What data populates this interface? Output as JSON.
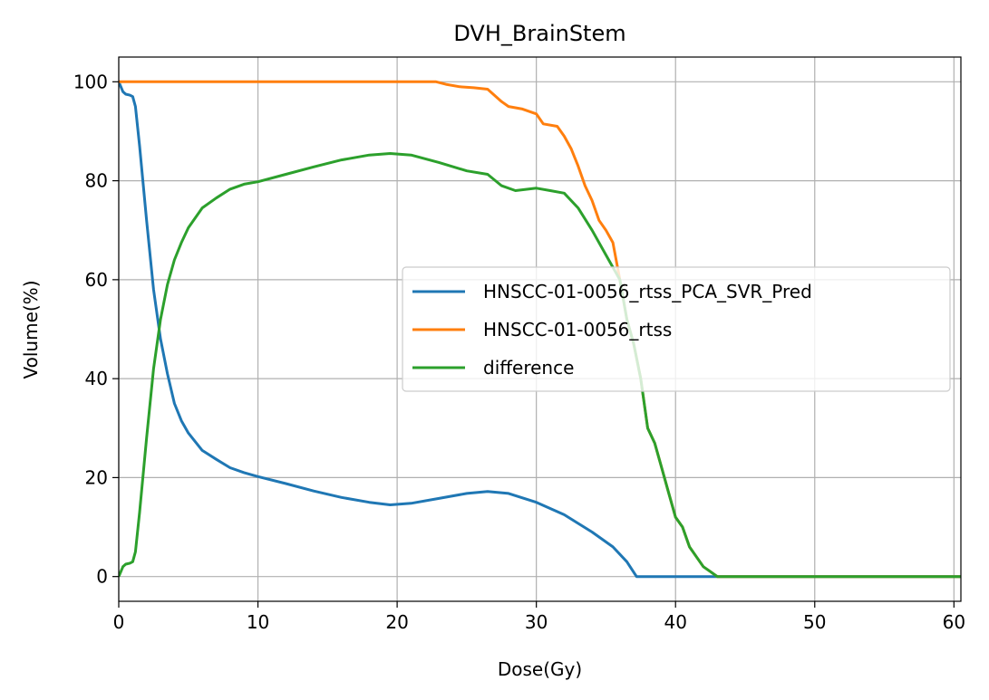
{
  "chart_data": {
    "type": "line",
    "title": "DVH_BrainStem",
    "xlabel": "Dose(Gy)",
    "ylabel": "Volume(%)",
    "xlim": [
      0,
      60.5
    ],
    "ylim": [
      -5,
      105
    ],
    "xticks": [
      0,
      10,
      20,
      30,
      40,
      50,
      60
    ],
    "yticks": [
      0,
      20,
      40,
      60,
      80,
      100
    ],
    "grid": true,
    "legend_position": "center-right",
    "series": [
      {
        "name": "HNSCC-01-0056_rtss_PCA_SVR_Pred",
        "color": "#1f77b4",
        "x": [
          0,
          0.3,
          0.5,
          0.8,
          1.0,
          1.2,
          1.5,
          2.0,
          2.5,
          3.0,
          3.5,
          4.0,
          4.5,
          5.0,
          6.0,
          7.0,
          8.0,
          9.0,
          10.0,
          12.0,
          14.0,
          16.0,
          18.0,
          19.5,
          21.0,
          23.0,
          25.0,
          26.5,
          28.0,
          30.0,
          32.0,
          34.0,
          35.5,
          36.5,
          37.2,
          40.0,
          45.0,
          50.0,
          55.0,
          60.5
        ],
        "y": [
          100,
          98,
          97.5,
          97.3,
          97,
          95,
          87,
          72,
          58,
          48,
          41,
          35,
          31.5,
          29,
          25.5,
          23.7,
          22,
          21,
          20.2,
          18.8,
          17.3,
          16,
          15,
          14.5,
          14.8,
          15.8,
          16.8,
          17.2,
          16.8,
          15,
          12.5,
          9,
          6,
          3,
          0,
          0,
          0,
          0,
          0,
          0
        ]
      },
      {
        "name": "HNSCC-01-0056_rtss",
        "color": "#ff7f0e",
        "x": [
          0,
          5,
          10,
          15,
          20,
          22.8,
          23.5,
          24.5,
          25.5,
          26.5,
          27.5,
          28.0,
          29.0,
          30.0,
          30.5,
          31.5,
          32.0,
          32.5,
          33.0,
          33.5,
          34.0,
          34.5,
          35.0,
          35.5,
          36.0,
          36.5,
          37.0,
          37.5,
          38.0,
          38.5,
          39.0,
          39.5,
          40.0,
          40.5,
          41.0,
          41.5,
          42.0,
          42.5,
          43.0,
          45.0,
          50.0,
          55.0,
          60.5
        ],
        "y": [
          100,
          100,
          100,
          100,
          100,
          100,
          99.5,
          99,
          98.8,
          98.5,
          96,
          95,
          94.5,
          93.5,
          91.5,
          91,
          89,
          86.5,
          83,
          79,
          76,
          72,
          70,
          67.5,
          60,
          52,
          47,
          40,
          30,
          27,
          22,
          17,
          12,
          10,
          6,
          4,
          2,
          1,
          0,
          0,
          0,
          0,
          0
        ]
      },
      {
        "name": "difference",
        "color": "#2ca02c",
        "x": [
          0,
          0.3,
          0.5,
          0.8,
          1.0,
          1.2,
          1.5,
          2.0,
          2.5,
          3.0,
          3.5,
          4.0,
          4.5,
          5.0,
          6.0,
          7.0,
          8.0,
          9.0,
          10.0,
          12.0,
          14.0,
          16.0,
          18.0,
          19.5,
          21.0,
          23.0,
          25.0,
          26.5,
          27.5,
          28.5,
          30.0,
          31.0,
          32.0,
          33.0,
          34.0,
          35.0,
          36.0,
          36.5,
          37.0,
          37.5,
          38.0,
          38.5,
          39.0,
          39.5,
          40.0,
          40.5,
          41.0,
          41.5,
          42.0,
          42.5,
          43.0,
          45.0,
          50.0,
          55.0,
          60.5
        ],
        "y": [
          0,
          2,
          2.5,
          2.7,
          3,
          5,
          13,
          28,
          42,
          52,
          59,
          64,
          67.5,
          70.5,
          74.5,
          76.5,
          78.3,
          79.3,
          79.8,
          81.3,
          82.8,
          84.2,
          85.2,
          85.5,
          85.2,
          83.7,
          82,
          81.3,
          79,
          78,
          78.5,
          78,
          77.5,
          74.5,
          70,
          65,
          60,
          52,
          47,
          40,
          30,
          27,
          22,
          17,
          12,
          10,
          6,
          4,
          2,
          1,
          0,
          0,
          0,
          0,
          0
        ]
      }
    ]
  }
}
